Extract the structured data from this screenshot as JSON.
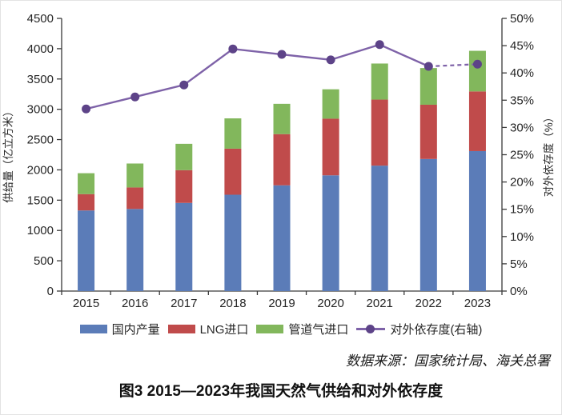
{
  "chart_data": {
    "type": "bar",
    "subtype": "stacked-bars-with-line",
    "categories": [
      "2015",
      "2016",
      "2017",
      "2018",
      "2019",
      "2020",
      "2021",
      "2022",
      "2023"
    ],
    "bar_series": [
      {
        "name": "国内产量",
        "color": "#5b7cb8",
        "values": [
          1330,
          1355,
          1455,
          1590,
          1745,
          1910,
          2070,
          2180,
          2310
        ]
      },
      {
        "name": "LNG进口",
        "color": "#c04b4b",
        "values": [
          270,
          355,
          540,
          760,
          845,
          935,
          1090,
          895,
          985
        ]
      },
      {
        "name": "管道气进口",
        "color": "#82b75c",
        "values": [
          345,
          395,
          435,
          500,
          500,
          485,
          595,
          605,
          670
        ]
      }
    ],
    "line_series": {
      "name": "对外依存度(右轴)",
      "color": "#7e62a8",
      "marker_color": "#5d4388",
      "values": [
        33.4,
        35.6,
        37.8,
        44.4,
        43.4,
        42.4,
        45.2,
        41.2,
        41.6
      ],
      "dashed_last_segment": true
    },
    "left_axis": {
      "title": "供给量（亿立方米）",
      "min": 0,
      "max": 4500,
      "step": 500,
      "ticks": [
        "0",
        "500",
        "1000",
        "1500",
        "2000",
        "2500",
        "3000",
        "3500",
        "4000",
        "4500"
      ]
    },
    "right_axis": {
      "title": "对外依存度（%）",
      "min": 0,
      "max": 50,
      "step": 5,
      "ticks": [
        "0%",
        "5%",
        "10%",
        "15%",
        "20%",
        "25%",
        "30%",
        "35%",
        "40%",
        "45%",
        "50%"
      ]
    },
    "grid": false,
    "legend_position": "bottom",
    "axis_color": "#3a3a3a"
  },
  "source_note": "数据来源：国家统计局、海关总署",
  "caption": "图3 2015—2023年我国天然气供给和对外依存度"
}
